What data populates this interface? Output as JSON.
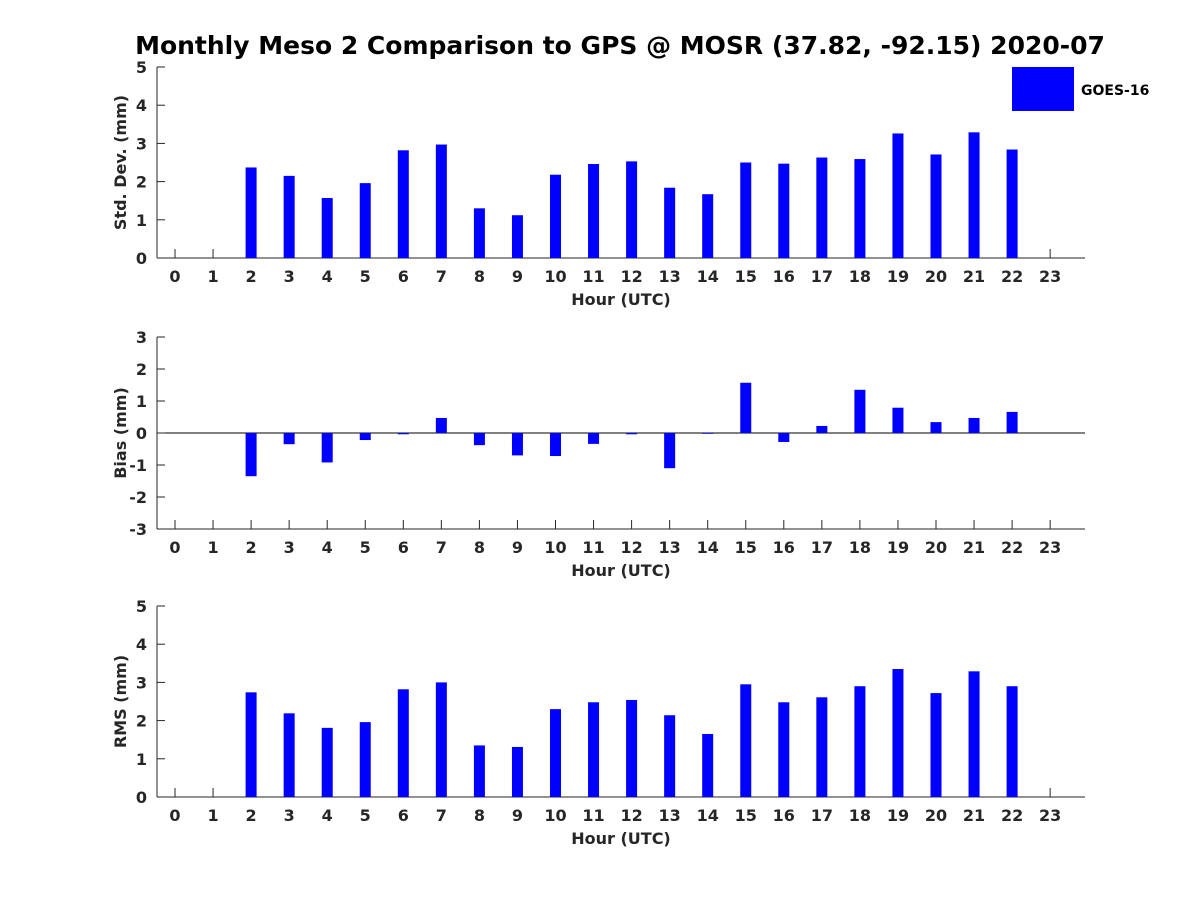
{
  "figure": {
    "title": "Monthly Meso 2 Comparison to GPS @ MOSR (37.82, -92.15) 2020-07",
    "legend": {
      "label": "GOES-16",
      "location": "top-right"
    },
    "bar_color": "#0000FF"
  },
  "chart_data": [
    {
      "type": "bar",
      "name": "std-dev",
      "series_name": "GOES-16",
      "categories": [
        "0",
        "1",
        "2",
        "3",
        "4",
        "5",
        "6",
        "7",
        "8",
        "9",
        "10",
        "11",
        "12",
        "13",
        "14",
        "15",
        "16",
        "17",
        "18",
        "19",
        "20",
        "21",
        "22",
        "23"
      ],
      "values": [
        null,
        null,
        2.37,
        2.15,
        1.57,
        1.96,
        2.82,
        2.97,
        1.3,
        1.12,
        2.18,
        2.46,
        2.53,
        1.84,
        1.67,
        2.5,
        2.47,
        2.63,
        2.59,
        3.26,
        2.71,
        3.29,
        2.84,
        null
      ],
      "xlabel": "Hour (UTC)",
      "ylabel": "Std. Dev. (mm)",
      "ylim": [
        0,
        5
      ],
      "yticks": [
        "0",
        "1",
        "2",
        "3",
        "4",
        "5"
      ]
    },
    {
      "type": "bar",
      "name": "bias",
      "series_name": "GOES-16",
      "categories": [
        "0",
        "1",
        "2",
        "3",
        "4",
        "5",
        "6",
        "7",
        "8",
        "9",
        "10",
        "11",
        "12",
        "13",
        "14",
        "15",
        "16",
        "17",
        "18",
        "19",
        "20",
        "21",
        "22",
        "23"
      ],
      "values": [
        null,
        null,
        -1.35,
        -0.35,
        -0.92,
        -0.22,
        -0.04,
        0.47,
        -0.38,
        -0.7,
        -0.72,
        -0.34,
        -0.04,
        -1.1,
        -0.02,
        1.57,
        -0.28,
        0.22,
        1.35,
        0.79,
        0.34,
        0.47,
        0.66,
        null
      ],
      "xlabel": "Hour (UTC)",
      "ylabel": "Bias (mm)",
      "ylim": [
        -3,
        3
      ],
      "yticks": [
        "-3",
        "-2",
        "-1",
        "0",
        "1",
        "2",
        "3"
      ]
    },
    {
      "type": "bar",
      "name": "rms",
      "series_name": "GOES-16",
      "categories": [
        "0",
        "1",
        "2",
        "3",
        "4",
        "5",
        "6",
        "7",
        "8",
        "9",
        "10",
        "11",
        "12",
        "13",
        "14",
        "15",
        "16",
        "17",
        "18",
        "19",
        "20",
        "21",
        "22",
        "23"
      ],
      "values": [
        null,
        null,
        2.74,
        2.19,
        1.81,
        1.96,
        2.82,
        3.0,
        1.35,
        1.31,
        2.3,
        2.48,
        2.54,
        2.14,
        1.65,
        2.95,
        2.48,
        2.61,
        2.9,
        3.35,
        2.72,
        3.29,
        2.9,
        null
      ],
      "xlabel": "Hour (UTC)",
      "ylabel": "RMS (mm)",
      "ylim": [
        0,
        5
      ],
      "yticks": [
        "0",
        "1",
        "2",
        "3",
        "4",
        "5"
      ]
    }
  ]
}
